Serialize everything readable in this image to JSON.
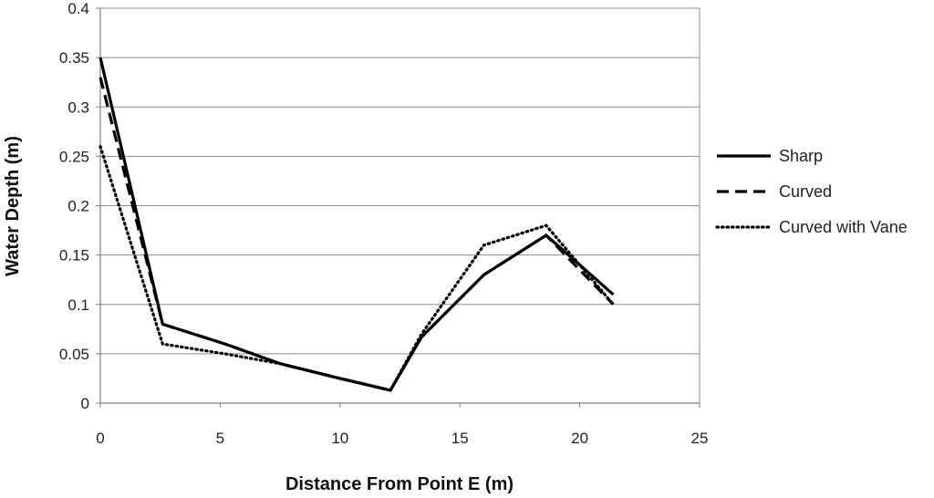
{
  "chart_data": {
    "type": "line",
    "title": "",
    "xlabel": "Distance From Point E (m)",
    "ylabel": "Water Depth (m)",
    "xlim": [
      0,
      25
    ],
    "ylim": [
      0,
      0.4
    ],
    "x_ticks": [
      0,
      5,
      10,
      15,
      20,
      25
    ],
    "x_tick_labels": [
      "0",
      "5",
      "10",
      "15",
      "20",
      "25"
    ],
    "y_ticks": [
      0,
      0.05,
      0.1,
      0.15,
      0.2,
      0.25,
      0.3,
      0.35,
      0.4
    ],
    "y_tick_labels": [
      "0",
      "0.05",
      "0.1",
      "0.15",
      "0.2",
      "0.25",
      "0.3",
      "0.35",
      "0.4"
    ],
    "grid": "horizontal",
    "legend_position": "right",
    "series": [
      {
        "name": "Sharp",
        "style": "solid",
        "color": "#000000",
        "x": [
          0,
          2.6,
          5.2,
          7.5,
          10.0,
          12.1,
          13.4,
          16.0,
          18.6,
          21.4
        ],
        "y": [
          0.35,
          0.08,
          0.06,
          0.04,
          0.025,
          0.013,
          0.067,
          0.13,
          0.17,
          0.11
        ]
      },
      {
        "name": "Curved",
        "style": "dashed",
        "color": "#000000",
        "x": [
          0,
          2.6,
          5.2,
          7.5,
          10.0,
          12.1,
          13.4,
          16.0,
          18.6,
          21.4
        ],
        "y": [
          0.33,
          0.08,
          0.06,
          0.04,
          0.025,
          0.013,
          0.067,
          0.13,
          0.17,
          0.1
        ]
      },
      {
        "name": "Curved with Vane",
        "style": "dotted",
        "color": "#000000",
        "x": [
          0,
          2.6,
          5.2,
          7.5,
          10.0,
          12.1,
          13.4,
          16.0,
          18.6,
          21.4
        ],
        "y": [
          0.26,
          0.06,
          0.05,
          0.04,
          0.025,
          0.013,
          0.07,
          0.16,
          0.18,
          0.1
        ]
      }
    ]
  }
}
